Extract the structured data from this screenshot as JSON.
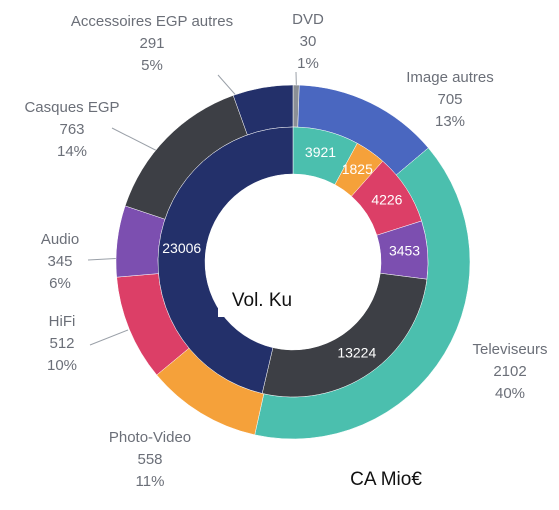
{
  "chart_data": {
    "type": "donut",
    "series": [
      {
        "name": "CA Mio€",
        "categories": [
          "DVD",
          "Image autres",
          "Televiseurs",
          "Photo-Video",
          "HiFi",
          "Audio",
          "Casques EGP",
          "Accessoires EGP autres"
        ],
        "values": [
          30,
          705,
          2102,
          558,
          512,
          345,
          763,
          291
        ],
        "percents": [
          "1%",
          "13%",
          "40%",
          "11%",
          "10%",
          "6%",
          "14%",
          "5%"
        ],
        "colors": [
          "#8a8f96",
          "#4a67c0",
          "#4bbfae",
          "#f5a13a",
          "#dc3f67",
          "#7c4fb0",
          "#3d3f45",
          "#23306a"
        ]
      },
      {
        "name": "Vol. Ku",
        "values": [
          3921,
          1825,
          4226,
          3453,
          13224,
          23006
        ],
        "colors": [
          "#4bbfae",
          "#f5a13a",
          "#dc3f67",
          "#7c4fb0",
          "#3d3f45",
          "#23306a"
        ]
      }
    ]
  }
}
